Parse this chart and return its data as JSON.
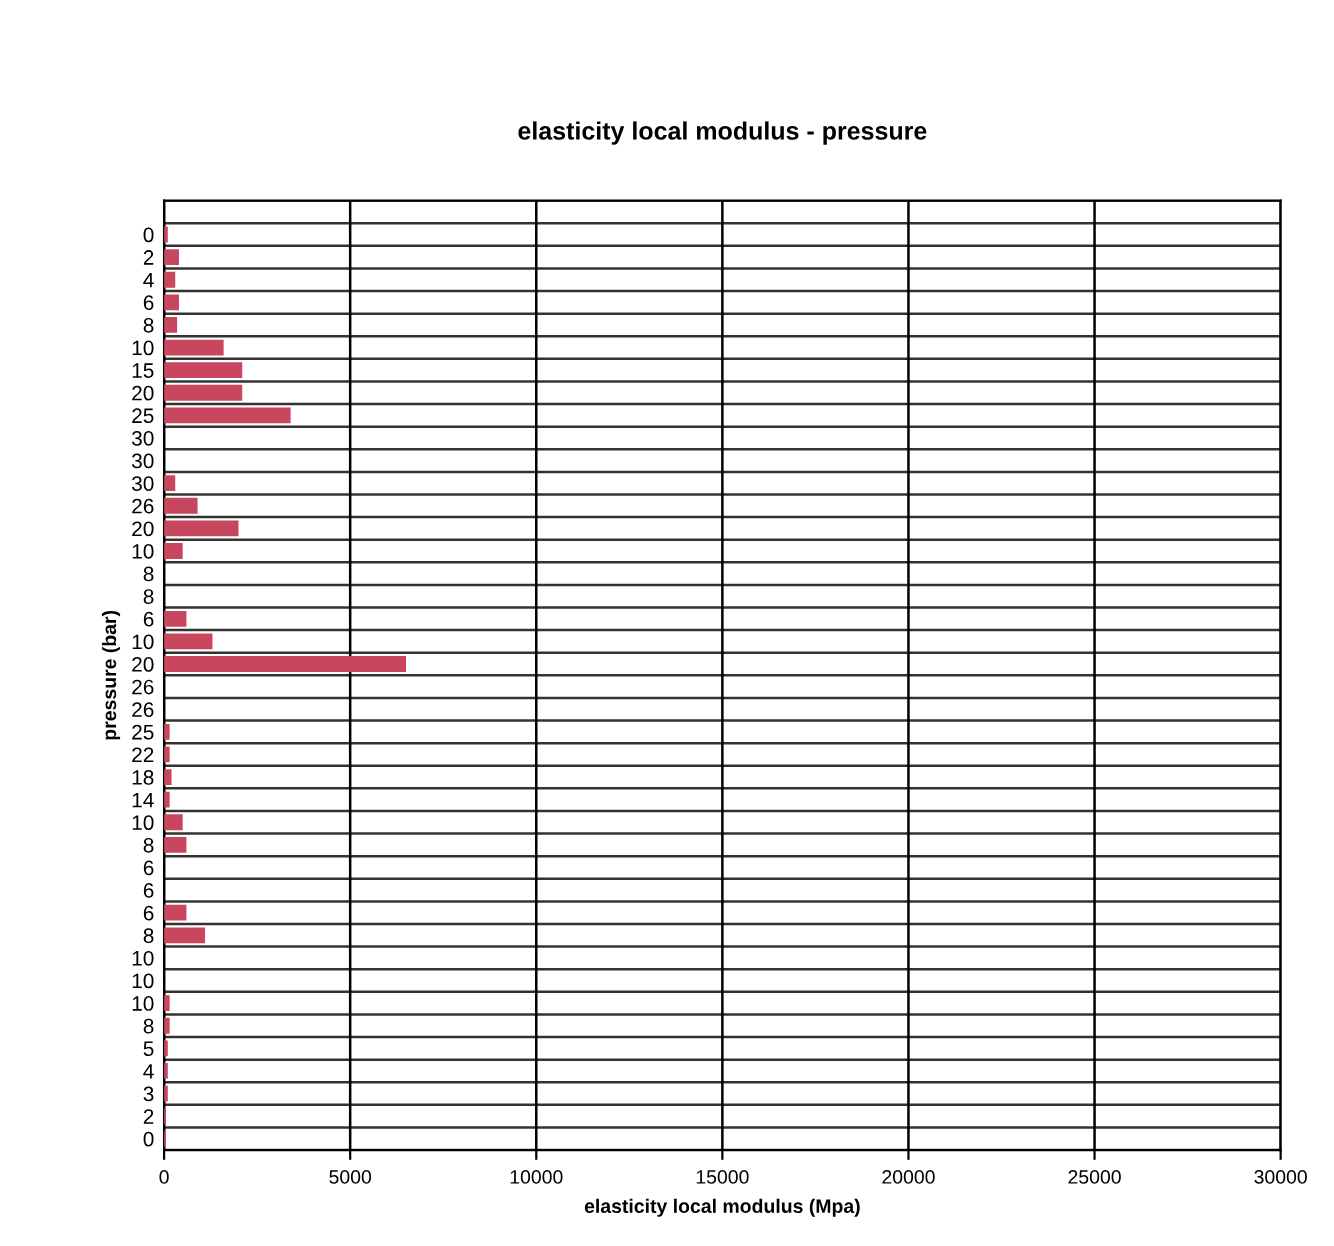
{
  "chart_data": {
    "type": "bar",
    "orientation": "horizontal",
    "title": "elasticity local modulus - pressure",
    "xlabel": "elasticity local modulus (Mpa)",
    "ylabel": "pressure (bar)",
    "categories": [
      null,
      "0",
      "2",
      "4",
      "6",
      "8",
      "10",
      "15",
      "20",
      "25",
      "30",
      "30",
      "30",
      "26",
      "20",
      "10",
      "8",
      "8",
      "6",
      "10",
      "20",
      "26",
      "26",
      "25",
      "22",
      "18",
      "14",
      "10",
      "8",
      "6",
      "6",
      "6",
      "8",
      "10",
      "10",
      "10",
      "8",
      "5",
      "4",
      "3",
      "2",
      "0"
    ],
    "series": [
      {
        "color": "#c8465e",
        "values": [
          null,
          100,
          400,
          300,
          400,
          350,
          1600,
          2100,
          2100,
          3400,
          0,
          0,
          300,
          900,
          2000,
          500,
          0,
          0,
          600,
          1300,
          6500,
          0,
          0,
          150,
          150,
          200,
          150,
          500,
          600,
          0,
          0,
          600,
          1100,
          0,
          0,
          150,
          150,
          100,
          100,
          100,
          50,
          50
        ]
      }
    ],
    "xlim": [
      0,
      30000
    ],
    "xticks": [
      0,
      5000,
      10000,
      15000,
      20000,
      25000,
      30000
    ],
    "grid": true,
    "legend": false
  }
}
